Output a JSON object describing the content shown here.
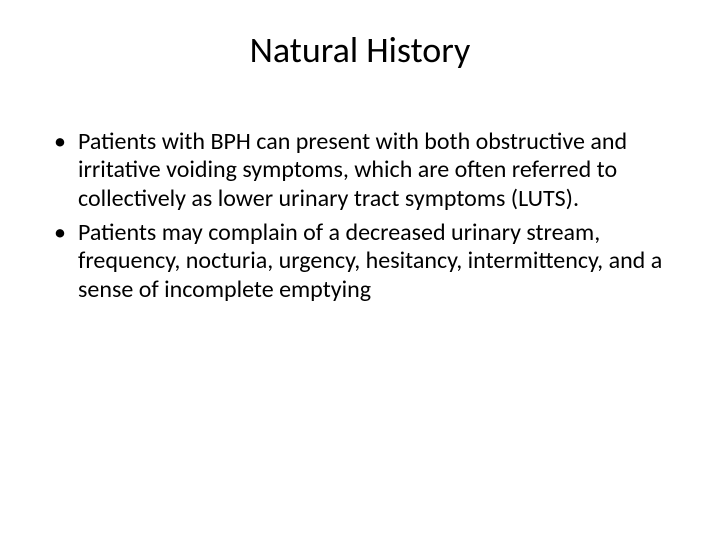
{
  "slide": {
    "title": "Natural History",
    "bullets": [
      "Patients with BPH can present with both obstructive and irritative voiding symptoms, which are often referred to collectively as lower urinary tract symptoms (LUTS).",
      "Patients may complain of a decreased urinary stream, frequency, nocturia, urgency, hesitancy, intermittency, and a sense of incomplete emptying"
    ]
  },
  "style": {
    "background_color": "#ffffff",
    "text_color": "#000000",
    "title_fontsize": 36,
    "body_fontsize": 24,
    "font_family": "Calibri",
    "bullet_char": "•"
  }
}
